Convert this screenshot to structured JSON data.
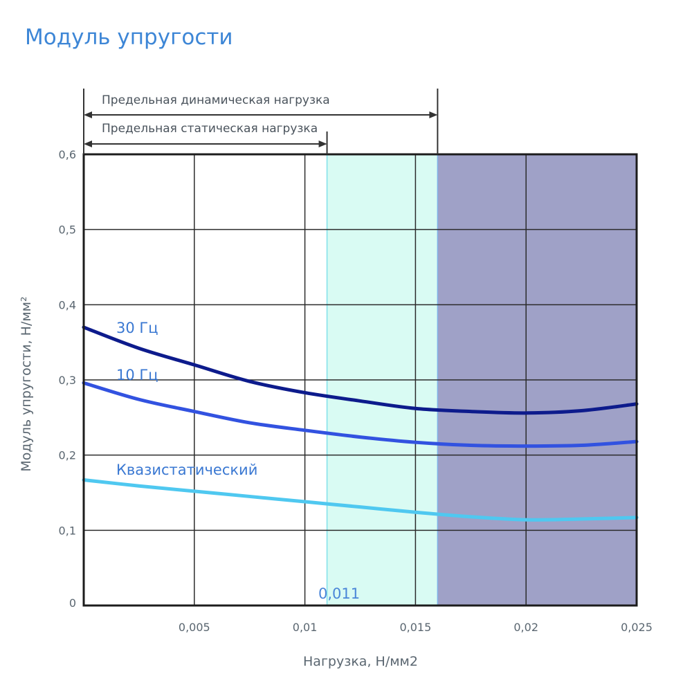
{
  "chart_data": {
    "type": "line",
    "title": "Модуль упругости",
    "xlabel": "Нагрузка, Н/мм2",
    "ylabel": "Модуль упругости, Н/мм²",
    "xlim": [
      0,
      0.025
    ],
    "ylim": [
      0,
      0.6
    ],
    "x_ticks": [
      {
        "value": 0.005,
        "label": "0,005"
      },
      {
        "value": 0.01,
        "label": "0,01"
      },
      {
        "value": 0.015,
        "label": "0,015"
      },
      {
        "value": 0.02,
        "label": "0,02"
      },
      {
        "value": 0.025,
        "label": "0,025"
      }
    ],
    "y_ticks": [
      {
        "value": 0,
        "label": "0"
      },
      {
        "value": 0.1,
        "label": "0,1"
      },
      {
        "value": 0.2,
        "label": "0,2"
      },
      {
        "value": 0.3,
        "label": "0,3"
      },
      {
        "value": 0.4,
        "label": "0,4"
      },
      {
        "value": 0.5,
        "label": "0,5"
      },
      {
        "value": 0.6,
        "label": "0,6"
      }
    ],
    "grid": true,
    "series": [
      {
        "name": "30 Гц",
        "color": "#0d1b8c",
        "x": [
          0,
          0.0025,
          0.005,
          0.0075,
          0.01,
          0.0125,
          0.015,
          0.0175,
          0.02,
          0.0225,
          0.025
        ],
        "y": [
          0.37,
          0.342,
          0.32,
          0.298,
          0.283,
          0.272,
          0.262,
          0.258,
          0.256,
          0.259,
          0.268
        ]
      },
      {
        "name": "10 Гц",
        "color": "#3252e0",
        "x": [
          0,
          0.0025,
          0.005,
          0.0075,
          0.01,
          0.0125,
          0.015,
          0.0175,
          0.02,
          0.0225,
          0.025
        ],
        "y": [
          0.296,
          0.274,
          0.258,
          0.243,
          0.233,
          0.224,
          0.217,
          0.213,
          0.212,
          0.213,
          0.218
        ]
      },
      {
        "name": "Квазистатический",
        "color": "#4fc8f0",
        "x": [
          0,
          0.0025,
          0.005,
          0.0075,
          0.01,
          0.0125,
          0.015,
          0.0175,
          0.02,
          0.0225,
          0.025
        ],
        "y": [
          0.167,
          0.159,
          0.152,
          0.145,
          0.138,
          0.131,
          0.124,
          0.118,
          0.114,
          0.115,
          0.117
        ]
      }
    ],
    "regions": [
      {
        "from": 0.011,
        "to": 0.016,
        "color": "#d9fbf3",
        "border": "#7fe0ea"
      },
      {
        "from": 0.016,
        "to": 0.025,
        "color": "#9fa1c7",
        "border": "#7fb0e6"
      }
    ],
    "annotations": {
      "static_limit": {
        "x": 0.011,
        "label": "Предельная статическая нагрузка"
      },
      "dynamic_limit": {
        "x": 0.016,
        "label": "Предельная динамическая нагрузка"
      },
      "marker_label": "0,011"
    },
    "colors": {
      "title": "#3d86d6",
      "series_label": "#3a78d2",
      "marker_label": "#4a86d8",
      "grid": "#2b2b2b",
      "frame": "#1c1c1c"
    }
  }
}
